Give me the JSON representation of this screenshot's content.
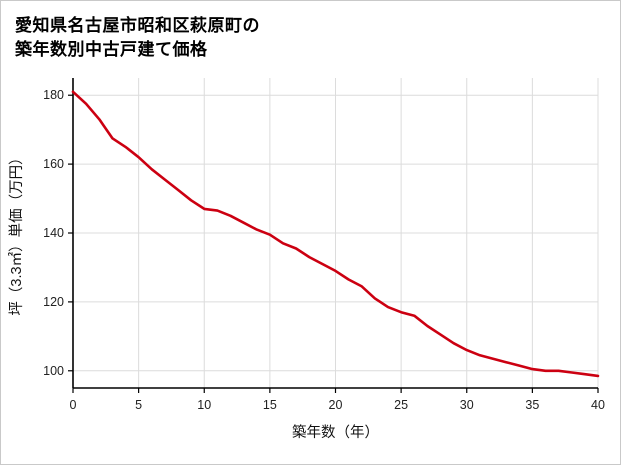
{
  "page": {
    "title_line1": "愛知県名古屋市昭和区萩原町の",
    "title_line2": "築年数別中古戸建て価格"
  },
  "chart_data": {
    "type": "line",
    "title": "愛知県名古屋市昭和区萩原町の築年数別中古戸建て価格",
    "xlabel": "築年数（年）",
    "ylabel": "坪（3.3㎡）単価（万円）",
    "xlim": [
      0,
      40
    ],
    "ylim": [
      95,
      185
    ],
    "x_ticks": [
      0,
      5,
      10,
      15,
      20,
      25,
      30,
      35,
      40
    ],
    "y_ticks": [
      100,
      120,
      140,
      160,
      180
    ],
    "grid": true,
    "legend": "none",
    "x": [
      0,
      1,
      2,
      3,
      4,
      5,
      6,
      7,
      8,
      9,
      10,
      11,
      12,
      13,
      14,
      15,
      16,
      17,
      18,
      19,
      20,
      21,
      22,
      23,
      24,
      25,
      26,
      27,
      28,
      29,
      30,
      31,
      32,
      33,
      34,
      35,
      36,
      37,
      38,
      39,
      40
    ],
    "series": [
      {
        "values": [
          181,
          177.5,
          173,
          167.5,
          165,
          162,
          158.5,
          155.5,
          152.5,
          149.5,
          147,
          146.5,
          145,
          143,
          141,
          139.5,
          137,
          135.5,
          133,
          131,
          129,
          126.5,
          124.5,
          121,
          118.5,
          117,
          116,
          113,
          110.5,
          108,
          106,
          104.5,
          103.5,
          102.5,
          101.5,
          100.5,
          100,
          100,
          99.5,
          99,
          98.5
        ]
      }
    ],
    "colors": {
      "line": "#cc0011",
      "grid": "#dcdcdc",
      "axis": "#000000",
      "tick_text": "#222222",
      "background": "#ffffff",
      "border": "#c9c9c9"
    }
  }
}
